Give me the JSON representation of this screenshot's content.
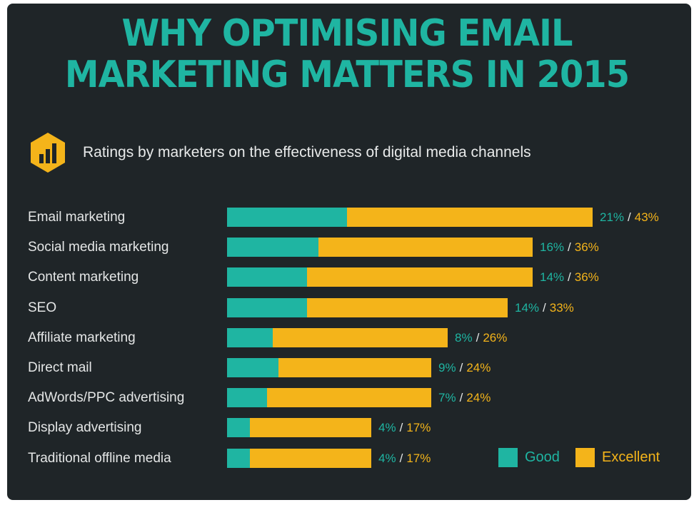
{
  "header": {
    "title_line1": "WHY OPTIMISING EMAIL",
    "title_line2": "MARKETING MATTERS IN 2015",
    "subtitle": "Ratings by marketers on the effectiveness of digital media channels",
    "icon": "bar-chart-hexagon-icon"
  },
  "colors": {
    "background": "#1f2528",
    "good": "#1fb5a2",
    "excellent": "#f4b41a",
    "title": "#1fb5a2",
    "text": "#e4e6e6"
  },
  "chart_data": {
    "type": "bar",
    "orientation": "horizontal",
    "title": "WHY OPTIMISING EMAIL MARKETING MATTERS IN 2015",
    "subtitle": "Ratings by marketers on the effectiveness of digital media channels",
    "categories": [
      "Email marketing",
      "Social media marketing",
      "Content marketing",
      "SEO",
      "Affiliate marketing",
      "Direct mail",
      "AdWords/PPC advertising",
      "Display advertising",
      "Traditional offline media"
    ],
    "series": [
      {
        "name": "Good",
        "values": [
          21,
          16,
          14,
          14,
          8,
          9,
          7,
          4,
          4
        ]
      },
      {
        "name": "Excellent",
        "values": [
          43,
          36,
          36,
          33,
          26,
          24,
          24,
          17,
          17
        ]
      }
    ],
    "value_labels": {
      "good": [
        "21%",
        "16%",
        "14%",
        "14%",
        "8%",
        "9%",
        "7%",
        "4%",
        "4%"
      ],
      "excellent": [
        "43%",
        "36%",
        "36%",
        "33%",
        "26%",
        "24%",
        "24%",
        "17%",
        "17%"
      ],
      "separator": "/"
    },
    "unit": "%",
    "xlim": [
      0,
      43
    ],
    "grid": false,
    "legend": {
      "position": "bottom-right",
      "entries": [
        "Good",
        "Excellent"
      ]
    }
  }
}
